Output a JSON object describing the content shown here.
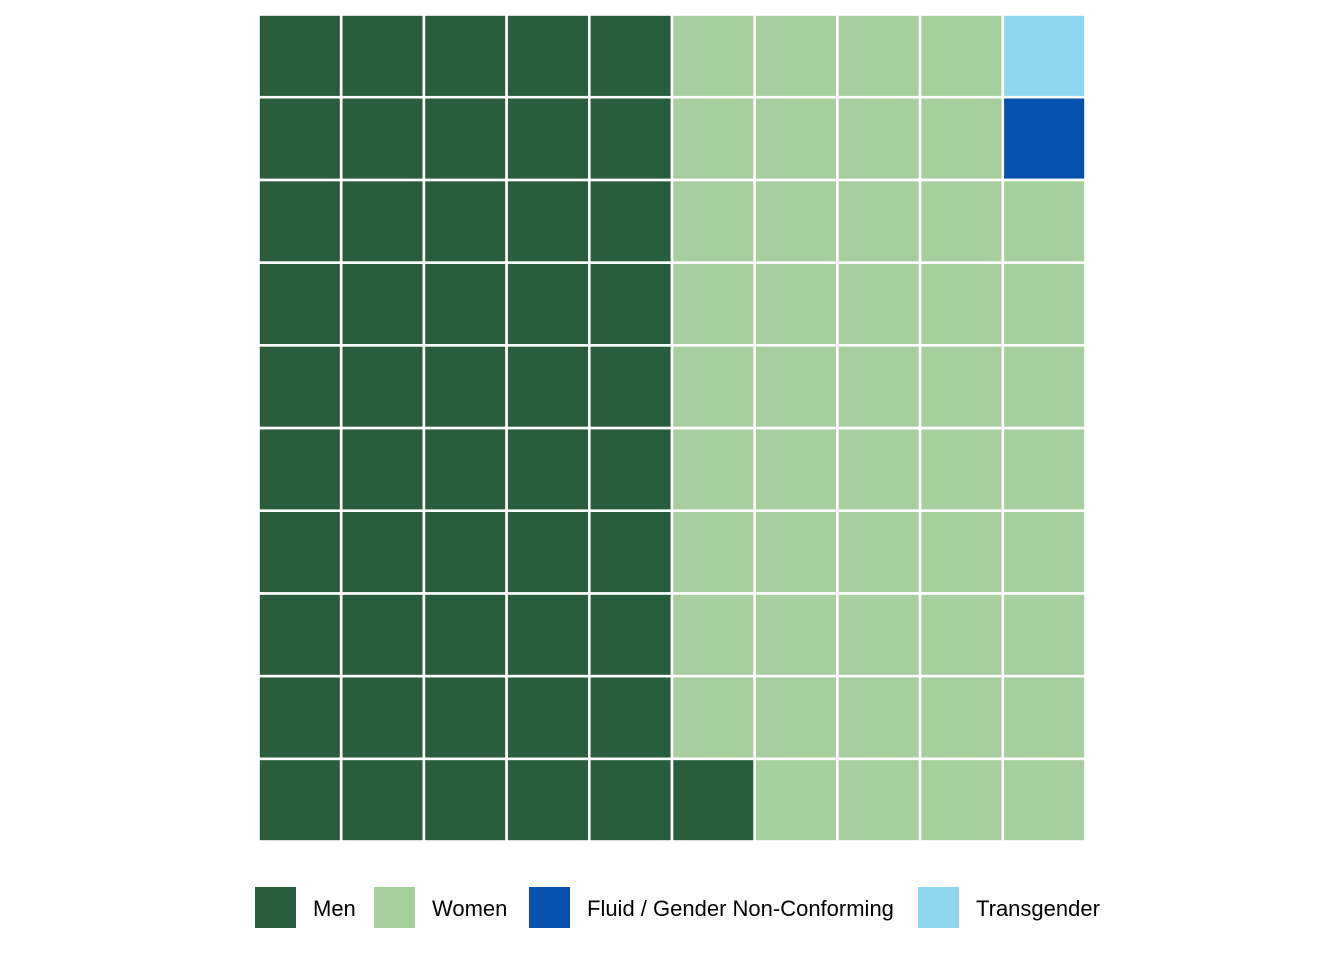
{
  "chart_data": {
    "type": "waffle",
    "title": "",
    "grid": {
      "rows": 10,
      "columns": 10,
      "fill_order": "column-major, bottom-to-top, left-to-right"
    },
    "total_cells": 100,
    "categories": [
      "Men",
      "Women",
      "Fluid / Gender Non-Conforming",
      "Transgender"
    ],
    "values": [
      51,
      47,
      1,
      1
    ],
    "series": [
      {
        "name": "Men",
        "value": 51,
        "color": "#285E3B"
      },
      {
        "name": "Women",
        "value": 47,
        "color": "#A6CF9D"
      },
      {
        "name": "Fluid / Gender Non-Conforming",
        "value": 1,
        "color": "#0850AE"
      },
      {
        "name": "Transgender",
        "value": 1,
        "color": "#8DD8F0"
      }
    ],
    "legend": {
      "position": "bottom",
      "orientation": "horizontal"
    },
    "border_color": "#FFFFFF"
  }
}
